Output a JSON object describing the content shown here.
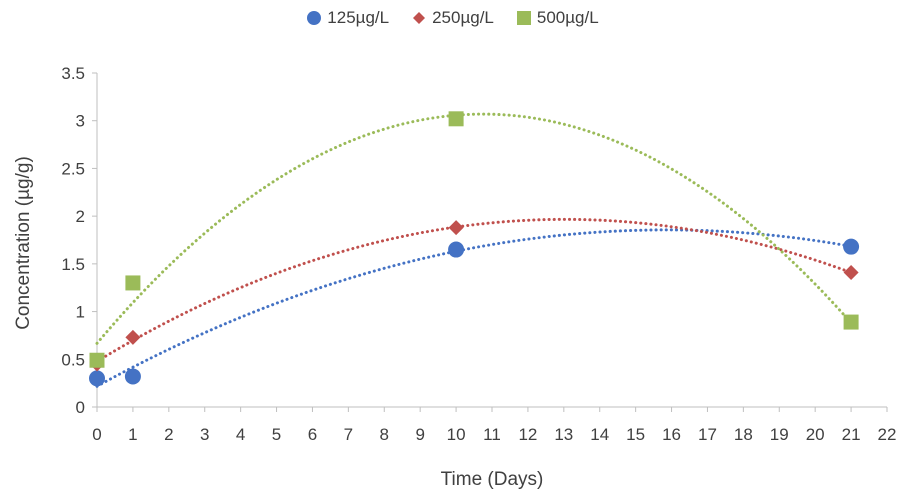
{
  "chart_data": {
    "type": "scatter",
    "title": "",
    "xlabel": "Time (Days)",
    "ylabel": "Concentration (µg/g)",
    "xlim": [
      0,
      22
    ],
    "ylim": [
      0,
      3.5
    ],
    "x_ticks": [
      "0",
      "1",
      "2",
      "3",
      "4",
      "5",
      "6",
      "7",
      "8",
      "9",
      "10",
      "11",
      "12",
      "13",
      "14",
      "15",
      "16",
      "17",
      "18",
      "19",
      "20",
      "21",
      "22"
    ],
    "y_ticks": [
      "0",
      "0.5",
      "1",
      "1.5",
      "2",
      "2.5",
      "3",
      "3.5"
    ],
    "grid": false,
    "legend_position": "top",
    "trendline": "polynomial order 2 (dotted)",
    "series": [
      {
        "name": "125µg/L",
        "marker": "circle",
        "color": "#4472C4",
        "x": [
          0,
          1,
          10,
          21
        ],
        "y": [
          0.3,
          0.32,
          1.65,
          1.68
        ]
      },
      {
        "name": "250µg/L",
        "marker": "diamond",
        "color": "#C0504D",
        "x": [
          0,
          1,
          10,
          21
        ],
        "y": [
          0.45,
          0.73,
          1.88,
          1.41
        ]
      },
      {
        "name": "500µg/L",
        "marker": "square",
        "color": "#9BBB59",
        "x": [
          0,
          1,
          10,
          21
        ],
        "y": [
          0.49,
          1.3,
          3.02,
          0.89
        ]
      }
    ]
  }
}
